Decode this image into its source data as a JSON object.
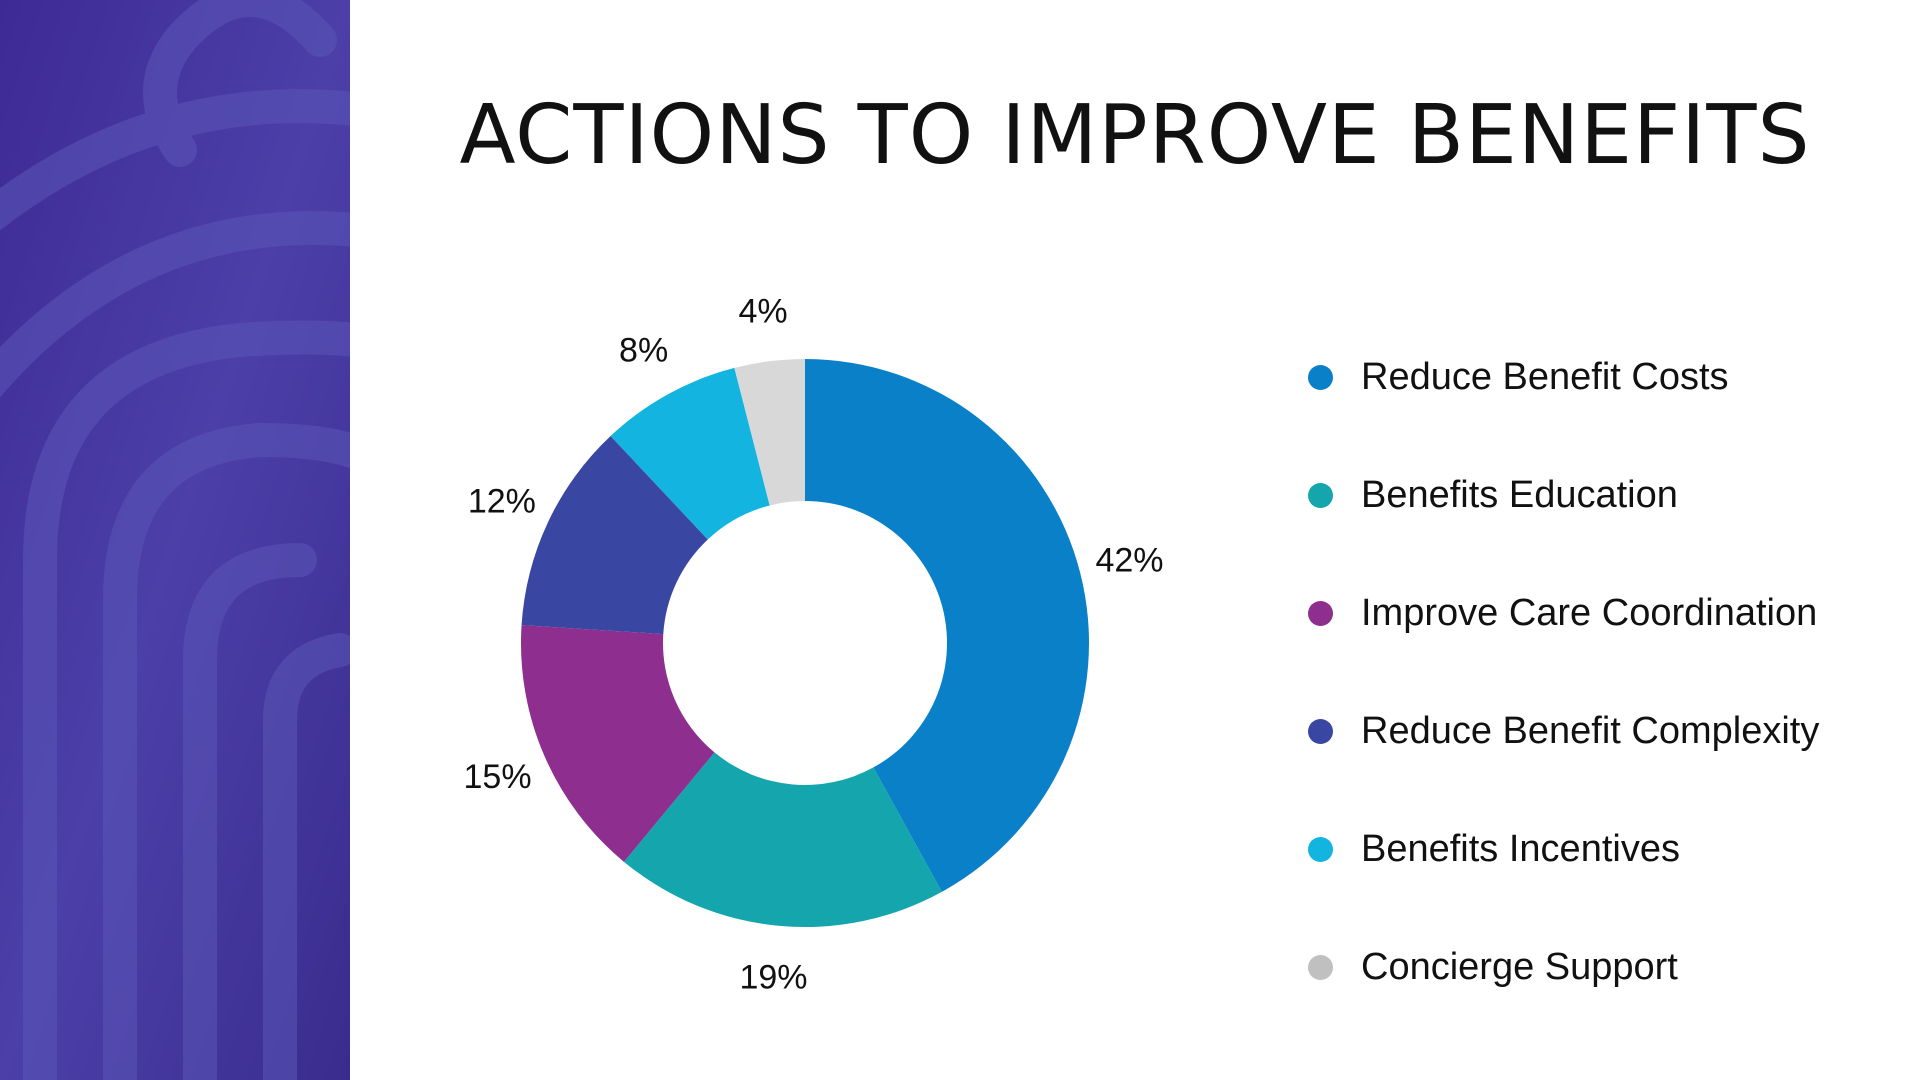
{
  "title": "ACTIONS TO IMPROVE BENEFITS",
  "colors": {
    "panel_base": "#4a35a0",
    "panel_pattern": "#5b56b8"
  },
  "chart_data": {
    "type": "pie",
    "donut": true,
    "title": "ACTIONS TO IMPROVE BENEFITS",
    "legend_position": "right",
    "categories": [
      "Reduce Benefit Costs",
      "Benefits Education",
      "Improve Care Coordination",
      "Reduce Benefit Complexity",
      "Benefits Incentives",
      "Concierge Support"
    ],
    "values": [
      42,
      19,
      15,
      12,
      8,
      4
    ],
    "labels": [
      "42%",
      "19%",
      "15%",
      "12%",
      "8%",
      "4%"
    ],
    "colors": [
      "#0a80c8",
      "#14a5ad",
      "#8e2e8e",
      "#3a47a2",
      "#13b5e0",
      "#d8d8d8"
    ],
    "legend_colors": [
      "#0a80c8",
      "#14a5ad",
      "#8e2e8e",
      "#3a47a2",
      "#13b5e0",
      "#c0c0c0"
    ]
  }
}
